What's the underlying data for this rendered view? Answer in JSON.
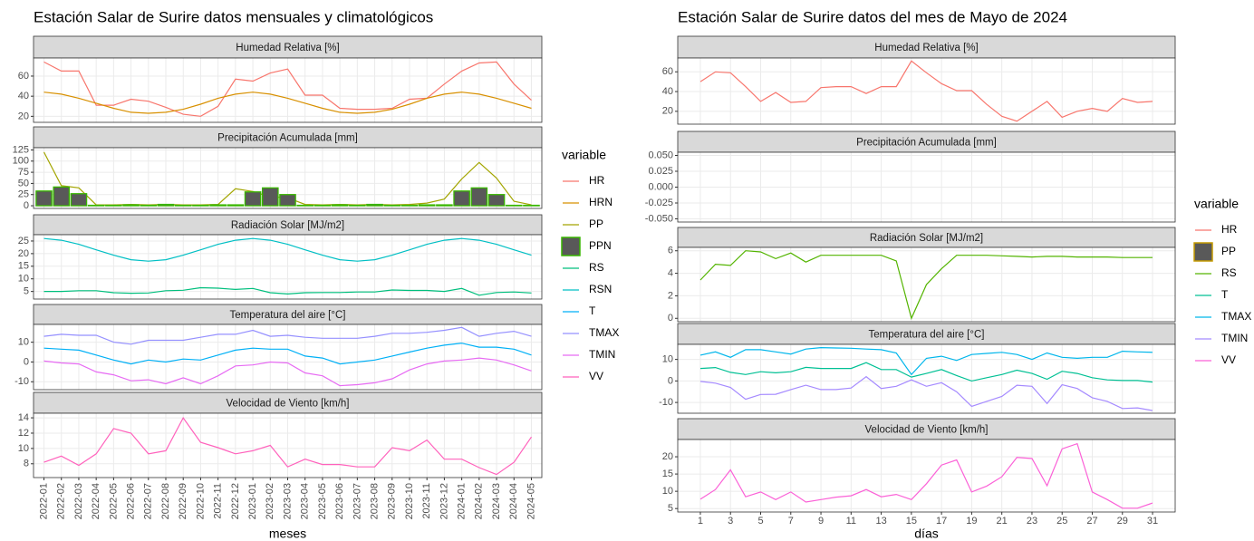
{
  "chart_data": [
    {
      "type": "line",
      "title": "Estación Salar de Surire datos mensuales y climatológicos",
      "xlabel": "meses",
      "legend_title": "variable",
      "grid": true,
      "categories": [
        "2022-01",
        "2022-02",
        "2022-03",
        "2022-04",
        "2022-05",
        "2022-06",
        "2022-07",
        "2022-08",
        "2022-09",
        "2022-10",
        "2022-11",
        "2022-12",
        "2023-01",
        "2023-02",
        "2023-03",
        "2023-04",
        "2023-05",
        "2023-06",
        "2023-07",
        "2023-08",
        "2023-09",
        "2023-10",
        "2023-11",
        "2023-12",
        "2024-01",
        "2024-02",
        "2024-03",
        "2024-04",
        "2024-05"
      ],
      "panels": [
        {
          "title": "Humedad Relativa [%]",
          "ylim": [
            14,
            78
          ],
          "yticks": [
            20,
            40,
            60
          ],
          "series": [
            {
              "name": "HR",
              "color": "#F8766D",
              "values": [
                74,
                65,
                65,
                31,
                31,
                37,
                35,
                29,
                22,
                20,
                30,
                57,
                55,
                63,
                67,
                41,
                41,
                28,
                27,
                27,
                28,
                37,
                38,
                52,
                65,
                73,
                74,
                52,
                36
              ]
            },
            {
              "name": "HRN",
              "color": "#D89000",
              "values": [
                44,
                42,
                38,
                33,
                28,
                24,
                23,
                24,
                27,
                32,
                38,
                42,
                44,
                42,
                38,
                33,
                28,
                24,
                23,
                24,
                27,
                32,
                38,
                42,
                44,
                42,
                38,
                33,
                28
              ]
            }
          ]
        },
        {
          "title": "Precipitación Acumulada [mm]",
          "ylim": [
            -6,
            130
          ],
          "yticks": [
            0,
            25,
            50,
            75,
            100,
            125
          ],
          "series": [
            {
              "name": "PP",
              "color": "#A3A500",
              "values": [
                120,
                45,
                40,
                2,
                2,
                3,
                2,
                3,
                2,
                2,
                3,
                38,
                32,
                20,
                18,
                3,
                2,
                3,
                2,
                3,
                2,
                3,
                6,
                15,
                60,
                97,
                62,
                10,
                2
              ]
            },
            {
              "name": "PPN",
              "color": "#39B600",
              "fill": "#595959",
              "geom": "bar",
              "values": [
                33,
                42,
                27,
                1,
                1,
                2,
                1,
                3,
                1,
                1,
                2,
                2,
                31,
                40,
                25,
                1,
                1,
                2,
                1,
                3,
                1,
                1,
                2,
                2,
                33,
                40,
                25,
                1,
                1
              ]
            }
          ]
        },
        {
          "title": "Radiación Solar [MJ/m2]",
          "ylim": [
            2,
            27.5
          ],
          "yticks": [
            5,
            10,
            15,
            20,
            25
          ],
          "series": [
            {
              "name": "RS",
              "color": "#00BF7D",
              "values": [
                5,
                5,
                5.3,
                5.3,
                4.5,
                4.3,
                4.4,
                5.3,
                5.5,
                6.5,
                6.3,
                5.8,
                6.2,
                4.5,
                4,
                4.5,
                4.6,
                4.6,
                4.8,
                4.8,
                5.6,
                5.4,
                5.4,
                5,
                6.2,
                3.5,
                4.6,
                4.8,
                4.4
              ]
            },
            {
              "name": "RSN",
              "color": "#00BFC4",
              "values": [
                26,
                25.3,
                23.7,
                21.5,
                19.4,
                17.6,
                17,
                17.6,
                19.4,
                21.5,
                23.7,
                25.3,
                26,
                25.3,
                23.7,
                21.5,
                19.4,
                17.6,
                17,
                17.6,
                19.4,
                21.5,
                23.7,
                25.3,
                26,
                25.3,
                23.7,
                21.5,
                19.4
              ]
            }
          ]
        },
        {
          "title": "Temperatura del aire [°C]",
          "ylim": [
            -14,
            19
          ],
          "yticks": [
            -10,
            0,
            10
          ],
          "series": [
            {
              "name": "T",
              "color": "#00B0F6",
              "values": [
                7,
                6.5,
                6,
                3.5,
                1,
                -1,
                1,
                0,
                1.5,
                1,
                3.5,
                6,
                7,
                6.5,
                6.5,
                3,
                2,
                -1,
                0,
                1,
                3,
                5,
                7,
                8.5,
                9.5,
                7.5,
                7.5,
                6.5,
                3.5
              ]
            },
            {
              "name": "TMAX",
              "color": "#9590FF",
              "values": [
                13,
                14,
                13.5,
                13.5,
                10,
                9,
                11,
                11,
                11,
                12.5,
                14,
                14,
                16,
                13,
                13.5,
                12.5,
                12,
                12,
                12,
                13,
                14.5,
                14.5,
                15,
                16,
                17.5,
                13,
                14.5,
                15.5,
                13
              ]
            },
            {
              "name": "TMIN",
              "color": "#E76BF3",
              "values": [
                0.5,
                -0.5,
                -1,
                -5,
                -6.5,
                -9.5,
                -9,
                -11,
                -8,
                -11,
                -7,
                -2,
                -1.5,
                0,
                -0.5,
                -5.5,
                -7,
                -12,
                -11.5,
                -10.5,
                -8.5,
                -4,
                -1,
                0.5,
                1,
                2,
                1,
                -1.5,
                -4.5
              ]
            }
          ]
        },
        {
          "title": "Velocidad de Viento [km/h]",
          "ylim": [
            6.2,
            14.6
          ],
          "yticks": [
            8,
            10,
            12,
            14
          ],
          "series": [
            {
              "name": "VV",
              "color": "#FF62BC",
              "values": [
                8.2,
                9,
                7.8,
                9.3,
                12.6,
                12,
                9.3,
                9.7,
                14,
                10.8,
                10.1,
                9.3,
                9.7,
                10.4,
                7.6,
                8.6,
                7.9,
                7.9,
                7.6,
                7.6,
                10.1,
                9.7,
                11.1,
                8.6,
                8.6,
                7.5,
                6.6,
                8.2,
                11.5
              ]
            }
          ]
        }
      ]
    },
    {
      "type": "line",
      "title": "Estación Salar de Surire datos del mes de Mayo de 2024",
      "xlabel": "días",
      "legend_title": "variable",
      "grid": true,
      "x": [
        1,
        2,
        3,
        4,
        5,
        6,
        7,
        8,
        9,
        10,
        11,
        12,
        13,
        14,
        15,
        16,
        17,
        18,
        19,
        20,
        21,
        22,
        23,
        24,
        25,
        26,
        27,
        28,
        29,
        30,
        31
      ],
      "xlim": [
        -0.5,
        32.5
      ],
      "xticks": [
        1,
        3,
        5,
        7,
        9,
        11,
        13,
        15,
        17,
        19,
        21,
        23,
        25,
        27,
        29,
        31
      ],
      "panels": [
        {
          "title": "Humedad Relativa [%]",
          "ylim": [
            7,
            74
          ],
          "yticks": [
            20,
            40,
            60
          ],
          "series": [
            {
              "name": "HR",
              "color": "#F8766D",
              "values": [
                50,
                60,
                59,
                45,
                30,
                39,
                29,
                30,
                44,
                45,
                45,
                38,
                45,
                45,
                71,
                59,
                48,
                41,
                41,
                27,
                15,
                10,
                20,
                30,
                14,
                20,
                23,
                20,
                33,
                29,
                30
              ]
            }
          ]
        },
        {
          "title": "Precipitación Acumulada [mm]",
          "ylim": [
            -0.055,
            0.055
          ],
          "yticks": [
            {
              "value": -0.05,
              "label": "-0.050"
            },
            {
              "value": -0.025,
              "label": "-0.025"
            },
            {
              "value": 0,
              "label": "0.000"
            },
            {
              "value": 0.025,
              "label": "0.025"
            },
            {
              "value": 0.05,
              "label": "0.050"
            }
          ],
          "series": [
            {
              "name": "PP",
              "color": "#C49A00",
              "fill": "#595959",
              "geom": "bar",
              "values": [
                0,
                0,
                0,
                0,
                0,
                0,
                0,
                0,
                0,
                0,
                0,
                0,
                0,
                0,
                0,
                0,
                0,
                0,
                0,
                0,
                0,
                0,
                0,
                0,
                0,
                0,
                0,
                0,
                0,
                0,
                0
              ]
            }
          ]
        },
        {
          "title": "Radiación Solar [MJ/m2]",
          "ylim": [
            -0.3,
            6.3
          ],
          "yticks": [
            0,
            2,
            4,
            6
          ],
          "series": [
            {
              "name": "RS",
              "color": "#53B400",
              "values": [
                3.4,
                4.8,
                4.7,
                6,
                5.9,
                5.3,
                5.8,
                5,
                5.6,
                5.6,
                5.6,
                5.6,
                5.6,
                5.1,
                0,
                3,
                4.4,
                5.6,
                5.6,
                5.6,
                5.55,
                5.5,
                5.45,
                5.5,
                5.5,
                5.45,
                5.45,
                5.45,
                5.4,
                5.4,
                5.4
              ]
            }
          ]
        },
        {
          "title": "Temperatura del aire [°C]",
          "ylim": [
            -15,
            17
          ],
          "yticks": [
            -10,
            0,
            10
          ],
          "series": [
            {
              "name": "T",
              "color": "#00C094",
              "values": [
                5.8,
                6.2,
                4,
                3,
                4.3,
                3.8,
                4.3,
                6.3,
                5.8,
                5.8,
                5.8,
                8.5,
                5.3,
                5.3,
                1.8,
                3.5,
                5.3,
                2.5,
                0,
                1.5,
                3,
                5,
                3.5,
                0.8,
                4.5,
                3.5,
                1.5,
                0.5,
                0.2,
                0.2,
                -0.5
              ]
            },
            {
              "name": "TMAX",
              "color": "#00B6EB",
              "values": [
                12,
                13.5,
                11,
                14.5,
                14.5,
                13.5,
                12.5,
                14.8,
                15.5,
                15.3,
                15.2,
                14.8,
                14.5,
                13,
                3,
                10.5,
                11.5,
                9.5,
                12.3,
                12.8,
                13.3,
                12.3,
                10,
                13,
                11,
                10.5,
                11,
                11,
                13.8,
                13.5,
                13.3
              ]
            },
            {
              "name": "TMIN",
              "color": "#A58AFF",
              "values": [
                -0.2,
                -1,
                -3,
                -8.5,
                -6.3,
                -6.2,
                -4,
                -2,
                -4,
                -4,
                -3.3,
                2,
                -3.5,
                -2.5,
                0.5,
                -2.5,
                -0.8,
                -5,
                -11.8,
                -9.5,
                -7.2,
                -2,
                -2.5,
                -10.5,
                -1.8,
                -3.5,
                -7.8,
                -9.5,
                -12.8,
                -12.5,
                -13.8
              ]
            }
          ]
        },
        {
          "title": "Velocidad de Viento [km/h]",
          "ylim": [
            4,
            25
          ],
          "yticks": [
            5,
            10,
            15,
            20
          ],
          "series": [
            {
              "name": "VV",
              "color": "#FB61D7",
              "values": [
                7.7,
                10.5,
                16.2,
                8.4,
                9.8,
                7.6,
                9.8,
                6.9,
                7.6,
                8.3,
                8.7,
                10.5,
                8.4,
                9.1,
                7.6,
                12.2,
                17.6,
                19.1,
                9.8,
                11.5,
                14.2,
                19.8,
                19.5,
                11.6,
                22.3,
                23.8,
                9.8,
                7.6,
                5.1,
                5.1,
                6.6
              ]
            }
          ]
        }
      ]
    }
  ]
}
